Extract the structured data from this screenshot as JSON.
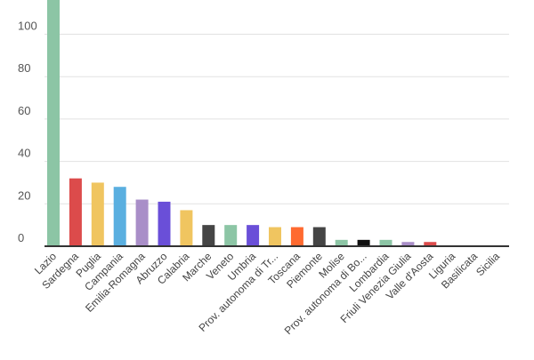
{
  "chart_data": {
    "type": "bar",
    "title": "",
    "xlabel": "",
    "ylabel": "",
    "ylim": [
      0,
      117
    ],
    "yticks": [
      0,
      20,
      40,
      60,
      80,
      100
    ],
    "grid": true,
    "categories": [
      "Lazio",
      "Sardegna",
      "Puglia",
      "Campania",
      "Emilia-Romagna",
      "Abruzzo",
      "Calabria",
      "Marche",
      "Veneto",
      "Umbria",
      "Prov. autonoma di Tr...",
      "Toscana",
      "Piemonte",
      "Molise",
      "Prov. autonoma di Bo...",
      "Lombardia",
      "Friuli Venezia Giulia",
      "Valle d'Aosta",
      "Liguria",
      "Basilicata",
      "Sicilia"
    ],
    "values": [
      120,
      32,
      30,
      28,
      22,
      21,
      17,
      10,
      10,
      10,
      9,
      9,
      9,
      3,
      3,
      3,
      2,
      2,
      0,
      0,
      0
    ],
    "colors": [
      "#8cc5a5",
      "#dc4b4b",
      "#f0c560",
      "#5aafe0",
      "#a98ec8",
      "#6a4fd8",
      "#f0c560",
      "#454545",
      "#8cc5a5",
      "#6a4fd8",
      "#f0c560",
      "#ff6a30",
      "#454545",
      "#8cc5a5",
      "#111111",
      "#8cc5a5",
      "#a98ec8",
      "#dc4b4b",
      "#8cc5a5",
      "#8cc5a5",
      "#8cc5a5"
    ]
  }
}
